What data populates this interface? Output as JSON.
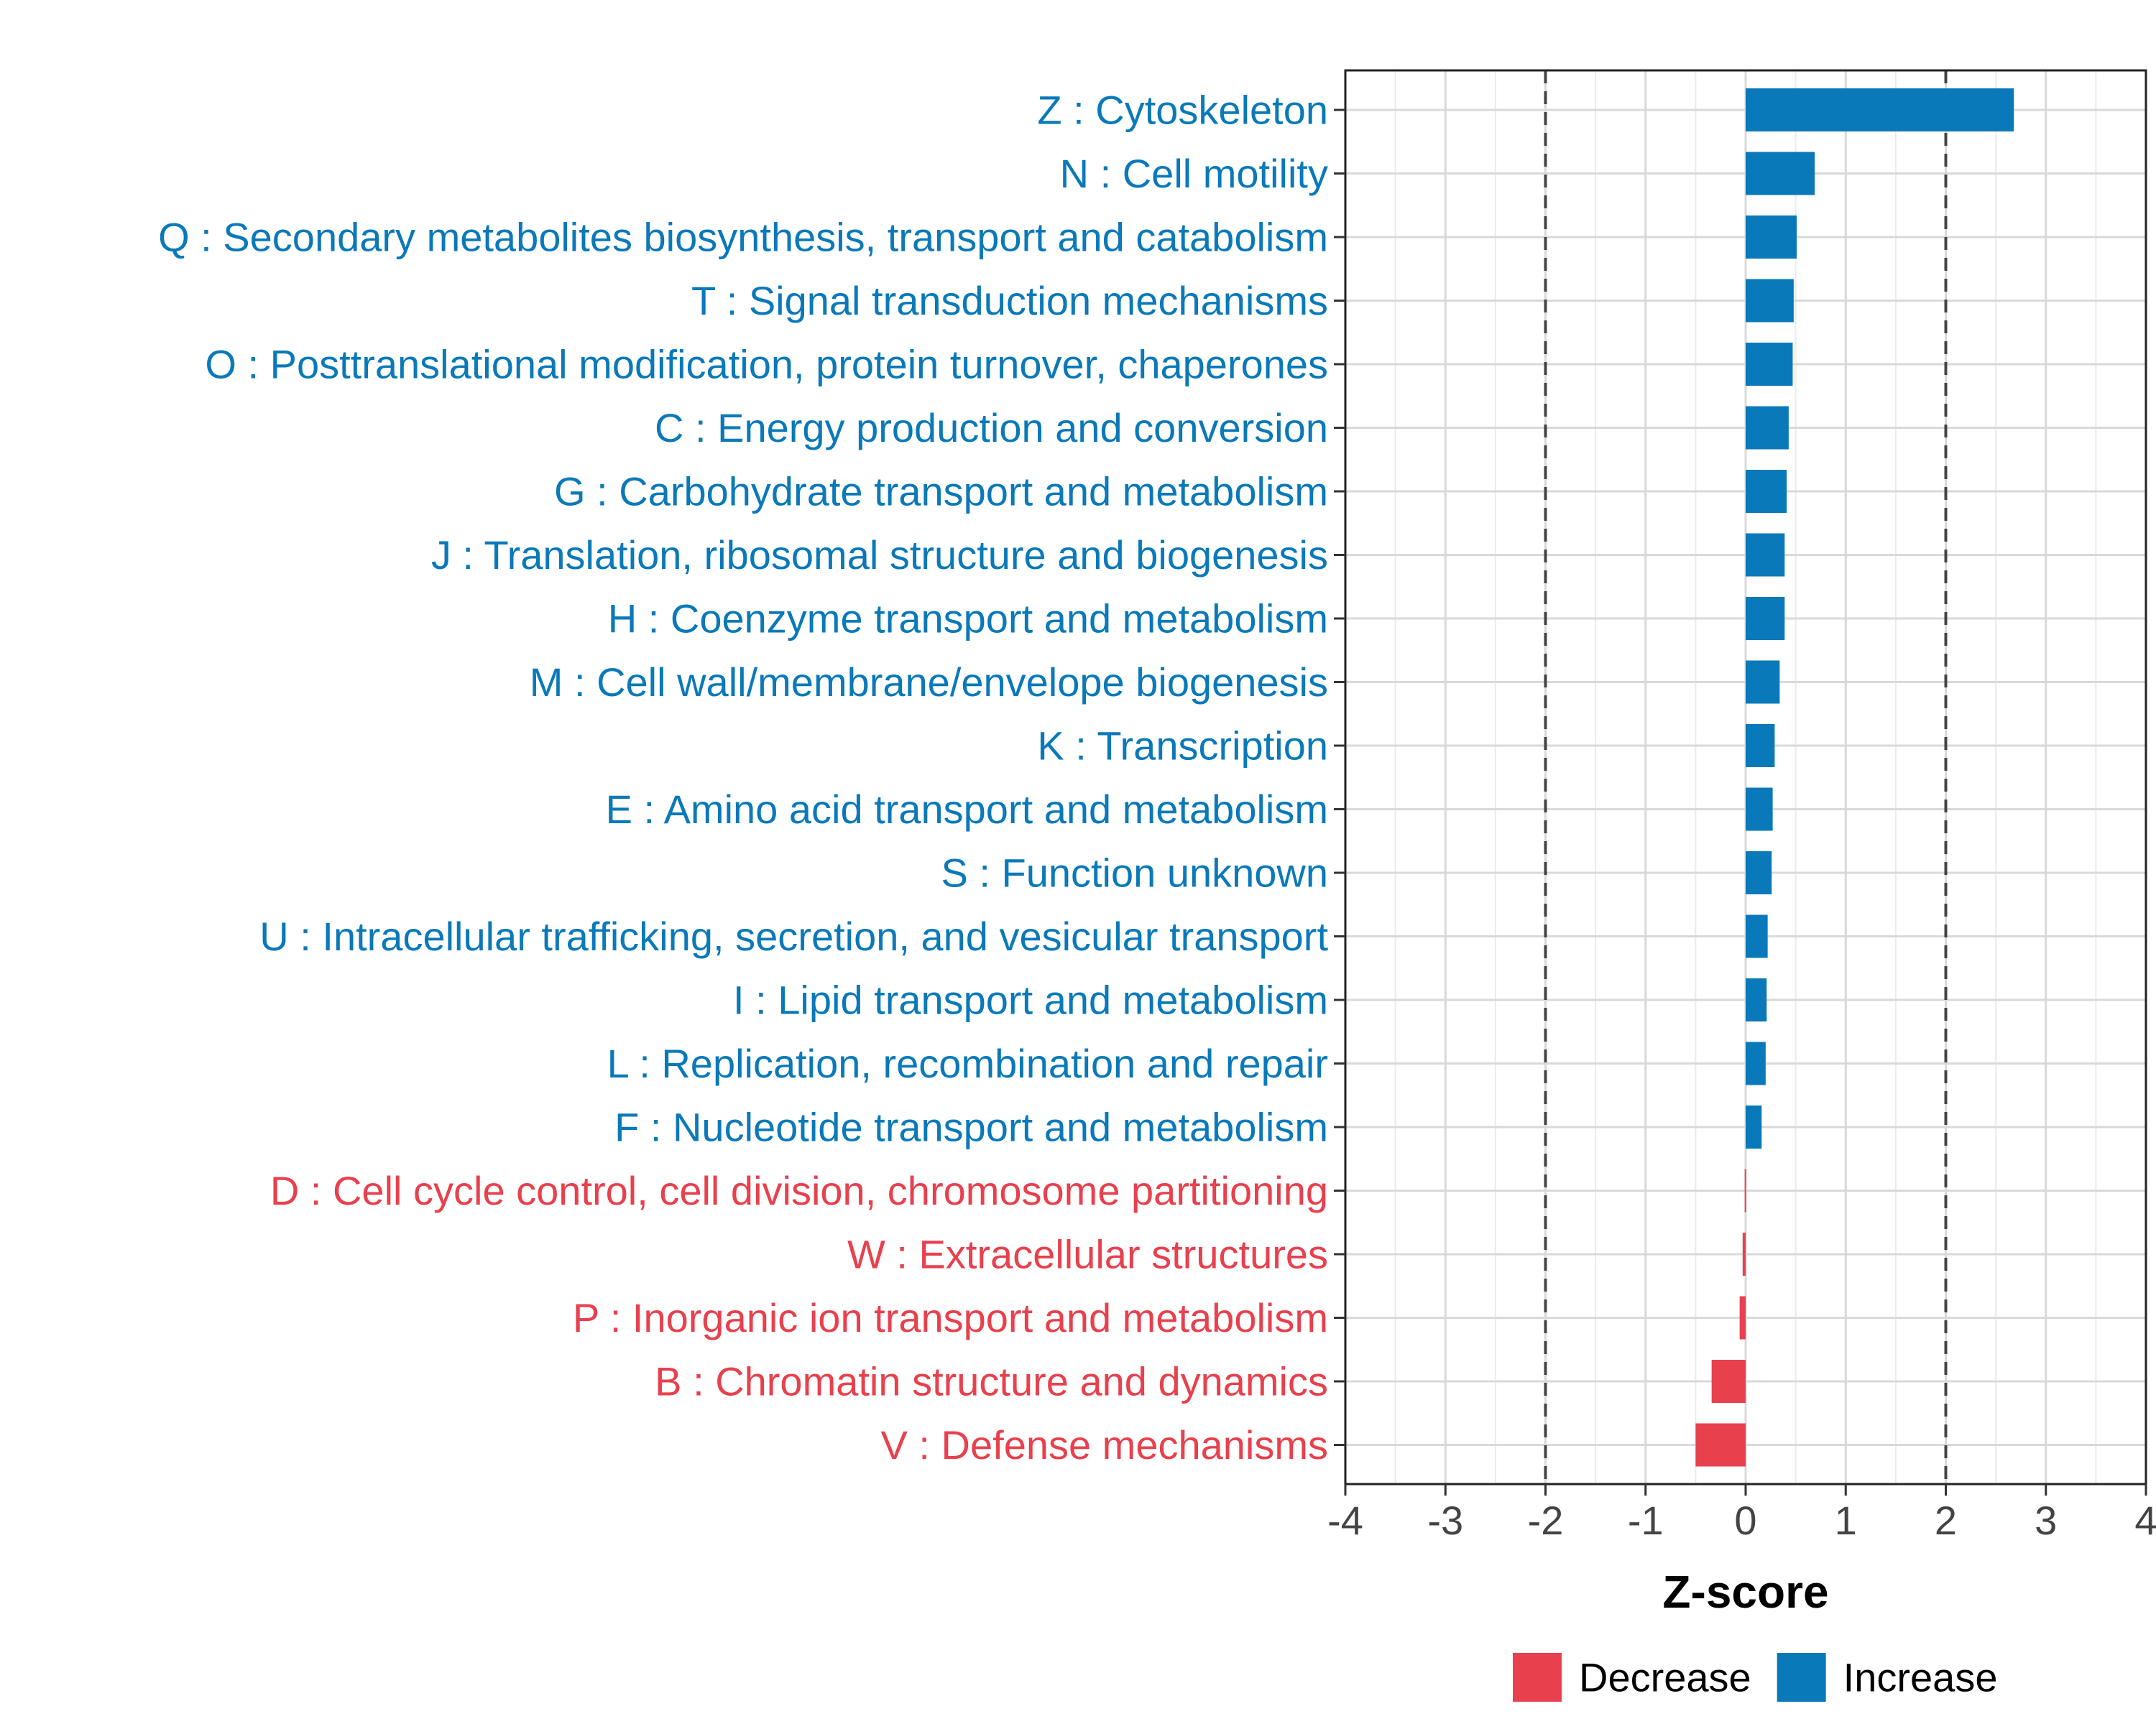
{
  "chart_data": {
    "type": "bar",
    "orientation": "horizontal",
    "title": "",
    "xlabel": "Z-score",
    "ylabel": "",
    "xlim": [
      -4,
      4
    ],
    "xticks": [
      "-4",
      "-3",
      "-2",
      "-1",
      "0",
      "1",
      "2",
      "3",
      "4"
    ],
    "reference_lines": [
      -2,
      2
    ],
    "grid": true,
    "colors": {
      "Decrease": "#E8404D",
      "Increase": "#0A79B9"
    },
    "legend": {
      "placement": "bottom",
      "entries": [
        {
          "label": "Decrease",
          "color": "#E8404D"
        },
        {
          "label": "Increase",
          "color": "#0A79B9"
        }
      ]
    },
    "categories": [
      {
        "label": "Z : Cytoskeleton",
        "value": 2.68,
        "direction": "Increase"
      },
      {
        "label": "N : Cell motility",
        "value": 0.69,
        "direction": "Increase"
      },
      {
        "label": "Q : Secondary metabolites biosynthesis, transport and catabolism",
        "value": 0.51,
        "direction": "Increase"
      },
      {
        "label": "T : Signal transduction mechanisms",
        "value": 0.48,
        "direction": "Increase"
      },
      {
        "label": "O : Posttranslational modification, protein turnover, chaperones",
        "value": 0.47,
        "direction": "Increase"
      },
      {
        "label": "C : Energy production and conversion",
        "value": 0.43,
        "direction": "Increase"
      },
      {
        "label": "G : Carbohydrate transport and metabolism",
        "value": 0.41,
        "direction": "Increase"
      },
      {
        "label": "J : Translation, ribosomal structure and biogenesis",
        "value": 0.39,
        "direction": "Increase"
      },
      {
        "label": "H : Coenzyme transport and metabolism",
        "value": 0.39,
        "direction": "Increase"
      },
      {
        "label": "M : Cell wall/membrane/envelope biogenesis",
        "value": 0.34,
        "direction": "Increase"
      },
      {
        "label": "K : Transcription",
        "value": 0.29,
        "direction": "Increase"
      },
      {
        "label": "E : Amino acid transport and metabolism",
        "value": 0.27,
        "direction": "Increase"
      },
      {
        "label": "S : Function unknown",
        "value": 0.26,
        "direction": "Increase"
      },
      {
        "label": "U : Intracellular trafficking, secretion, and vesicular transport",
        "value": 0.22,
        "direction": "Increase"
      },
      {
        "label": "I : Lipid transport and metabolism",
        "value": 0.21,
        "direction": "Increase"
      },
      {
        "label": "L : Replication, recombination and repair",
        "value": 0.2,
        "direction": "Increase"
      },
      {
        "label": "F : Nucleotide transport and metabolism",
        "value": 0.16,
        "direction": "Increase"
      },
      {
        "label": "D : Cell cycle control, cell division, chromosome partitioning",
        "value": -0.01,
        "direction": "Decrease"
      },
      {
        "label": "W : Extracellular structures",
        "value": -0.03,
        "direction": "Decrease"
      },
      {
        "label": "P : Inorganic ion transport and metabolism",
        "value": -0.06,
        "direction": "Decrease"
      },
      {
        "label": "B : Chromatin structure and dynamics",
        "value": -0.34,
        "direction": "Decrease"
      },
      {
        "label": "V : Defense mechanisms",
        "value": -0.5,
        "direction": "Decrease"
      }
    ]
  }
}
